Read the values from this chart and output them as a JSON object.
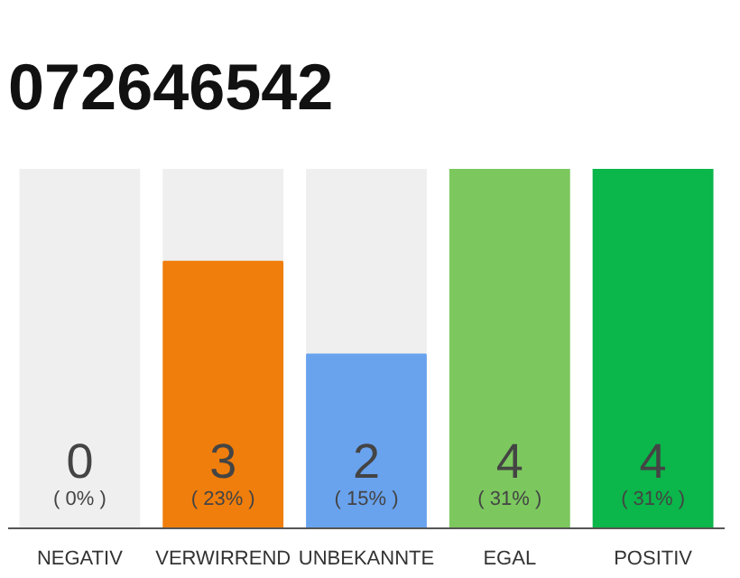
{
  "chart_data": {
    "type": "bar",
    "title": "072646542",
    "categories": [
      "NEGATIV",
      "VERWIRREND",
      "UNBEKANNTE",
      "EGAL",
      "POSITIV"
    ],
    "values": [
      0,
      23,
      15,
      31,
      31
    ],
    "colors": [
      "#efefef",
      "#f07e0c",
      "#69a3ee",
      "#7cc85f",
      "#0bb64a"
    ],
    "value_labels": [
      "( 0% )",
      "( 23% )",
      "( 15% )",
      "( 31% )",
      "( 31% )"
    ],
    "annotations": [
      "0",
      "3",
      "2",
      "4",
      "4"
    ],
    "grid": false,
    "tick_labels": "x"
  }
}
